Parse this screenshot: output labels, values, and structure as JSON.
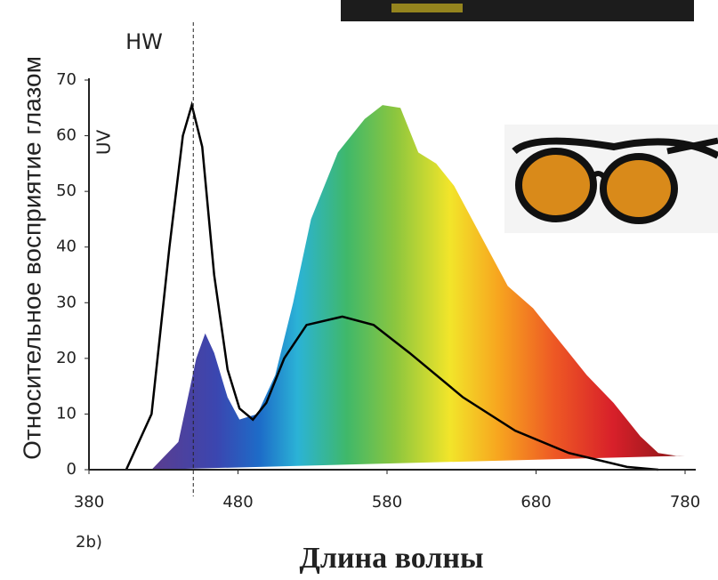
{
  "chart_data": {
    "type": "line",
    "series": [
      {
        "color": "gradient",
        "fill": true,
        "x": [
          422,
          440,
          452,
          458,
          464,
          473,
          481,
          493,
          505,
          517,
          529,
          547,
          565,
          577,
          589,
          601,
          613,
          625,
          643,
          661,
          678,
          696,
          714,
          732,
          750,
          762,
          774,
          780
        ],
        "values": [
          0,
          5,
          20,
          24.5,
          21,
          13,
          9,
          10,
          17,
          30,
          45,
          57,
          63,
          65.5,
          65,
          57,
          55,
          51,
          42,
          33,
          29,
          23,
          17,
          12,
          6,
          3,
          2.5,
          2.5
        ]
      },
      {
        "color": "#000000",
        "fill": false,
        "x": [
          405,
          422,
          434,
          443,
          449,
          456,
          464,
          473,
          481,
          490,
          499,
          511,
          526,
          550,
          571,
          595,
          631,
          666,
          702,
          741,
          762
        ],
        "values": [
          0,
          10,
          40,
          60,
          65.5,
          58,
          35,
          18,
          11,
          9,
          12,
          20,
          26,
          27.5,
          26,
          21,
          13,
          7,
          3,
          0.5,
          0
        ]
      }
    ],
    "vline": 450,
    "vline_label": "HW",
    "uv_label": "UV",
    "ylabel": "Относительное восприятие глазом",
    "xlabel": "Длина волны",
    "panel_label": "2b)",
    "xlim": [
      380,
      780
    ],
    "xticks": [
      380,
      480,
      580,
      680,
      780
    ],
    "ylim": [
      0,
      70
    ],
    "yticks": [
      0,
      10,
      20,
      30,
      40,
      50,
      60,
      70
    ]
  }
}
